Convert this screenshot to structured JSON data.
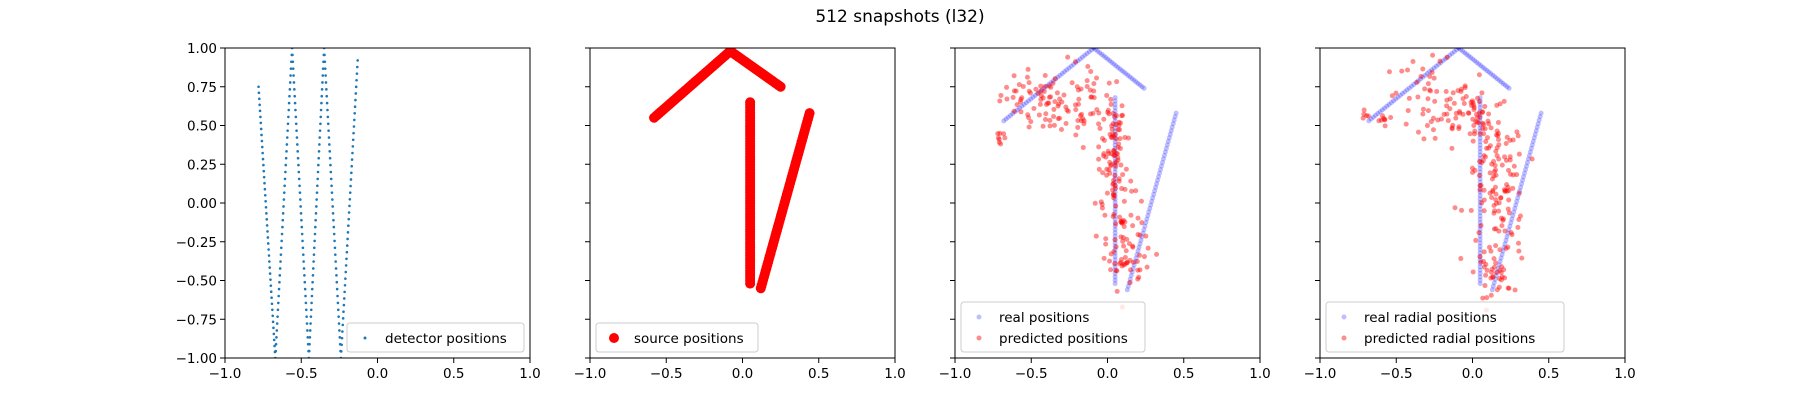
{
  "figure": {
    "title": "512 snapshots (l32)"
  },
  "chart_data": [
    {
      "type": "scatter",
      "title": "",
      "xlabel": "",
      "ylabel": "",
      "xlim": [
        -1.0,
        1.0
      ],
      "ylim": [
        -1.0,
        1.0
      ],
      "x_ticks": [
        "−1.0",
        "−0.5",
        "0.0",
        "0.5",
        "1.0"
      ],
      "y_ticks": [
        "1.00",
        "0.75",
        "0.50",
        "0.25",
        "0.00",
        "−0.25",
        "−0.50",
        "−0.75",
        "−1.00"
      ],
      "show_y_tick_labels": true,
      "grid": false,
      "legend_position": "lower right",
      "series": [
        {
          "name": "detector positions",
          "color": "#1f77b4",
          "marker_size": 1.3,
          "alpha": 1.0,
          "polyline": [
            [
              -0.78,
              0.75
            ],
            [
              -0.67,
              -1.0
            ],
            [
              -0.56,
              1.0
            ],
            [
              -0.45,
              -1.0
            ],
            [
              -0.35,
              1.0
            ],
            [
              -0.24,
              -1.0
            ],
            [
              -0.13,
              0.92
            ]
          ],
          "points_per_segment": 45
        }
      ]
    },
    {
      "type": "scatter",
      "title": "",
      "xlabel": "",
      "ylabel": "",
      "xlim": [
        -1.0,
        1.0
      ],
      "ylim": [
        -1.0,
        1.0
      ],
      "x_ticks": [
        "−1.0",
        "−0.5",
        "0.0",
        "0.5",
        "1.0"
      ],
      "y_ticks": [
        "1.00",
        "0.75",
        "0.50",
        "0.25",
        "0.00",
        "−0.25",
        "−0.50",
        "−0.75",
        "−1.00"
      ],
      "show_y_tick_labels": false,
      "grid": false,
      "legend_position": "lower left",
      "series": [
        {
          "name": "source positions",
          "color": "#ff0000",
          "marker_size": 5,
          "alpha": 1.0,
          "segments": [
            [
              [
                -0.58,
                0.55
              ],
              [
                -0.08,
                0.98
              ],
              45
            ],
            [
              [
                -0.08,
                0.98
              ],
              [
                0.25,
                0.75
              ],
              30
            ],
            [
              [
                0.05,
                0.65
              ],
              [
                0.05,
                -0.52
              ],
              70
            ],
            [
              [
                0.12,
                -0.55
              ],
              [
                0.44,
                0.58
              ],
              60
            ]
          ]
        }
      ]
    },
    {
      "type": "scatter",
      "title": "",
      "xlabel": "",
      "ylabel": "",
      "xlim": [
        -1.0,
        1.0
      ],
      "ylim": [
        -1.0,
        1.0
      ],
      "x_ticks": [
        "−1.0",
        "−0.5",
        "0.0",
        "0.5",
        "1.0"
      ],
      "y_ticks": [
        "1.00",
        "0.75",
        "0.50",
        "0.25",
        "0.00",
        "−0.25",
        "−0.50",
        "−0.75",
        "−1.00"
      ],
      "show_y_tick_labels": false,
      "grid": false,
      "legend_position": "lower left",
      "series": [
        {
          "name": "real positions",
          "color": "#0000ff",
          "marker_size": 2.5,
          "alpha": 0.25,
          "segments": [
            [
              [
                -0.68,
                0.53
              ],
              [
                -0.09,
                1.0
              ],
              40
            ],
            [
              [
                -0.09,
                1.0
              ],
              [
                0.24,
                0.74
              ],
              25
            ],
            [
              [
                0.05,
                0.68
              ],
              [
                0.05,
                -0.52
              ],
              55
            ],
            [
              [
                0.13,
                -0.56
              ],
              [
                0.45,
                0.58
              ],
              50
            ]
          ]
        },
        {
          "name": "predicted positions",
          "color": "#ff0000",
          "marker_size": 2.5,
          "alpha": 0.45,
          "clusters": [
            [
              -0.48,
              0.7,
              0.11,
              0.08,
              40
            ],
            [
              -0.3,
              0.58,
              0.13,
              0.07,
              40
            ],
            [
              -0.12,
              0.68,
              0.12,
              0.12,
              30
            ],
            [
              0.02,
              0.45,
              0.05,
              0.12,
              40
            ],
            [
              0.05,
              0.15,
              0.06,
              0.18,
              60
            ],
            [
              0.1,
              -0.25,
              0.06,
              0.15,
              40
            ],
            [
              0.18,
              -0.4,
              0.08,
              0.08,
              20
            ],
            [
              -0.7,
              0.43,
              0.02,
              0.04,
              8
            ]
          ]
        }
      ]
    },
    {
      "type": "scatter",
      "title": "",
      "xlabel": "",
      "ylabel": "",
      "xlim": [
        -1.0,
        1.0
      ],
      "ylim": [
        -1.0,
        1.0
      ],
      "x_ticks": [
        "−1.0",
        "−0.5",
        "0.0",
        "0.5",
        "1.0"
      ],
      "y_ticks": [
        "1.00",
        "0.75",
        "0.50",
        "0.25",
        "0.00",
        "−0.25",
        "−0.50",
        "−0.75",
        "−1.00"
      ],
      "show_y_tick_labels": false,
      "grid": false,
      "legend_position": "lower left",
      "series": [
        {
          "name": "real radial positions",
          "color": "#0000ff",
          "marker_size": 2.5,
          "alpha": 0.25,
          "segments": [
            [
              [
                -0.68,
                0.53
              ],
              [
                -0.09,
                1.0
              ],
              40
            ],
            [
              [
                -0.09,
                1.0
              ],
              [
                0.24,
                0.74
              ],
              25
            ],
            [
              [
                0.05,
                0.68
              ],
              [
                0.05,
                -0.52
              ],
              55
            ],
            [
              [
                0.13,
                -0.56
              ],
              [
                0.45,
                0.58
              ],
              50
            ]
          ]
        },
        {
          "name": "predicted radial positions",
          "color": "#ff0000",
          "marker_size": 2.5,
          "alpha": 0.45,
          "clusters": [
            [
              -0.3,
              0.72,
              0.14,
              0.1,
              40
            ],
            [
              -0.08,
              0.58,
              0.12,
              0.09,
              40
            ],
            [
              0.08,
              0.5,
              0.08,
              0.1,
              30
            ],
            [
              0.15,
              0.15,
              0.1,
              0.2,
              80
            ],
            [
              0.2,
              -0.2,
              0.08,
              0.2,
              50
            ],
            [
              0.12,
              -0.45,
              0.05,
              0.06,
              20
            ],
            [
              -0.6,
              0.52,
              0.02,
              0.04,
              8
            ],
            [
              -0.7,
              0.57,
              0.02,
              0.02,
              5
            ]
          ]
        }
      ]
    }
  ]
}
